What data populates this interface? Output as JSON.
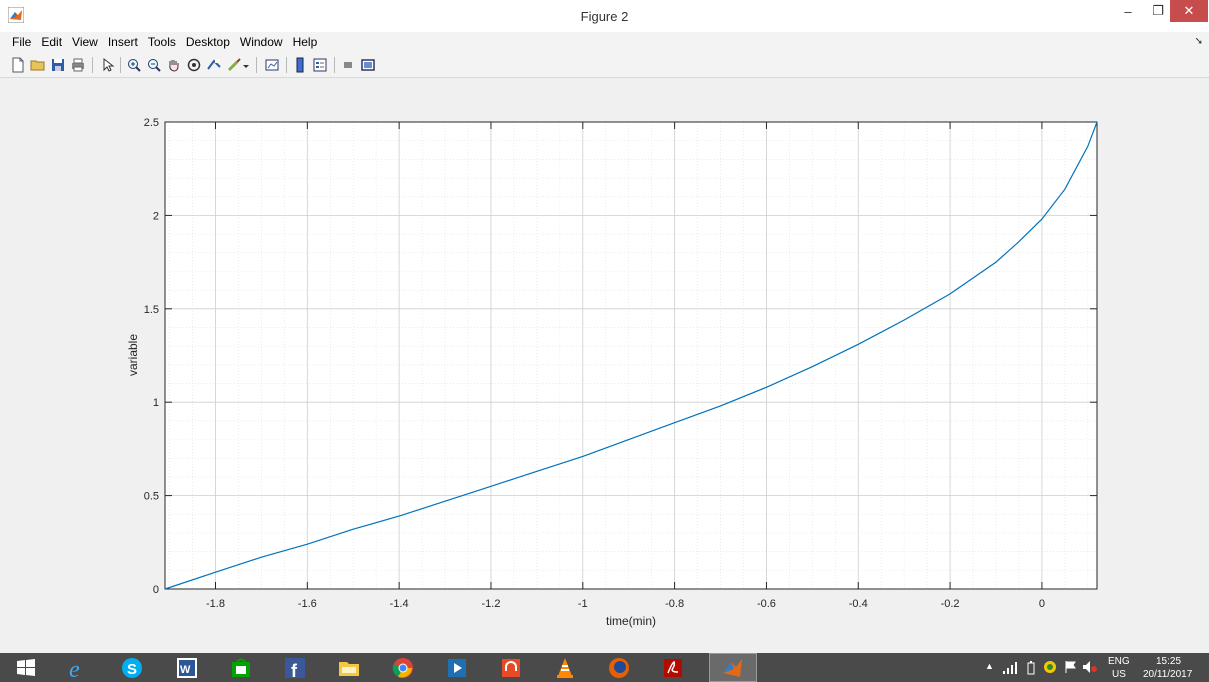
{
  "window": {
    "title": "Figure 2",
    "min_label": "–",
    "max_label": "❐",
    "close_label": "✕"
  },
  "menu": {
    "items": [
      "File",
      "Edit",
      "View",
      "Insert",
      "Tools",
      "Desktop",
      "Window",
      "Help"
    ]
  },
  "toolbar": {
    "icons": [
      "new-figure-icon",
      "open-file-icon",
      "save-icon",
      "print-icon",
      "pointer-icon",
      "zoom-in-icon",
      "zoom-out-icon",
      "pan-hand-icon",
      "rotate-3d-icon",
      "data-cursor-icon",
      "brush-icon",
      "brush-dropdown-icon",
      "link-plot-icon",
      "colorbar-icon",
      "legend-icon",
      "hide-plot-tools-icon",
      "show-plot-tools-icon"
    ]
  },
  "chart_data": {
    "type": "line",
    "title": "",
    "xlabel": "time(min)",
    "ylabel": "variable",
    "xlim": [
      -1.91,
      0.12
    ],
    "ylim": [
      0,
      2.5
    ],
    "xticks": [
      -1.8,
      -1.6,
      -1.4,
      -1.2,
      -1,
      -0.8,
      -0.6,
      -0.4,
      -0.2,
      0
    ],
    "xtick_labels": [
      "-1.8",
      "-1.6",
      "-1.4",
      "-1.2",
      "-1",
      "-0.8",
      "-0.6",
      "-0.4",
      "-0.2",
      "0"
    ],
    "yticks": [
      0,
      0.5,
      1,
      1.5,
      2,
      2.5
    ],
    "ytick_labels": [
      "0",
      "0.5",
      "1",
      "1.5",
      "2",
      "2.5"
    ],
    "grid": true,
    "minor_grid": true,
    "line_color": "#0072bd",
    "series": [
      {
        "x": [
          -1.91,
          -1.8,
          -1.7,
          -1.6,
          -1.5,
          -1.4,
          -1.3,
          -1.2,
          -1.1,
          -1.0,
          -0.9,
          -0.8,
          -0.7,
          -0.6,
          -0.5,
          -0.4,
          -0.3,
          -0.2,
          -0.1,
          -0.05,
          0.0,
          0.05,
          0.1,
          0.12
        ],
        "y": [
          0.0,
          0.09,
          0.17,
          0.24,
          0.32,
          0.39,
          0.47,
          0.55,
          0.63,
          0.71,
          0.8,
          0.89,
          0.98,
          1.08,
          1.19,
          1.31,
          1.44,
          1.58,
          1.75,
          1.86,
          1.98,
          2.14,
          2.37,
          2.5
        ]
      }
    ]
  },
  "taskbar": {
    "apps": [
      "start-icon",
      "internet-explorer-icon",
      "skype-icon",
      "word-icon",
      "store-icon",
      "facebook-icon",
      "file-explorer-icon",
      "chrome-icon",
      "media-player-icon",
      "music-icon",
      "vlc-icon",
      "firefox-icon",
      "acrobat-icon",
      "matlab-icon"
    ],
    "lang_top": "ENG",
    "lang_bottom": "US",
    "time": "15:25",
    "date": "20/11/2017"
  },
  "colors": {
    "close_button": "#c74c4c",
    "taskbar": "#4a4a4a",
    "plot_line": "#0072bd"
  }
}
